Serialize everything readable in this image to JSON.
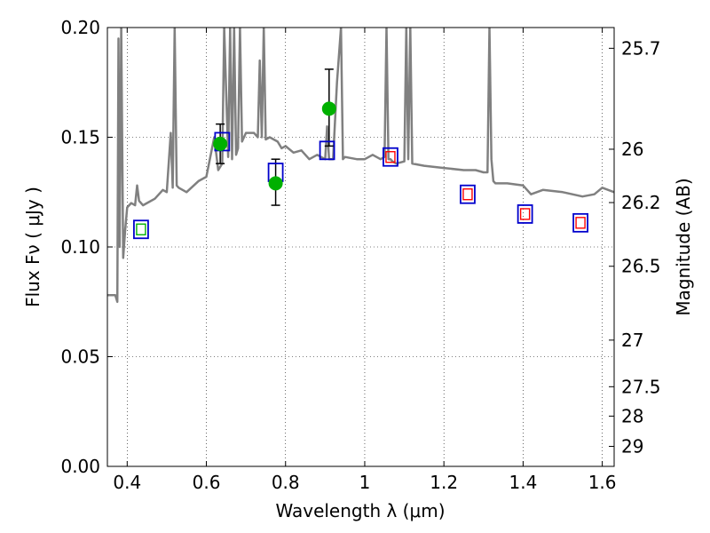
{
  "chart_data": {
    "type": "scatter",
    "xlabel": "Wavelength  λ (μm)",
    "ylabel": "Flux  Fν  ( μJy )",
    "ylabel_right": "Magnitude (AB)",
    "xlim": [
      0.35,
      1.63
    ],
    "ylim": [
      0.0,
      0.2
    ],
    "grid": true,
    "x_ticks": [
      0.4,
      0.6,
      0.8,
      1.0,
      1.2,
      1.4,
      1.6
    ],
    "x_tick_labels": [
      "0.4",
      "0.6",
      "0.8",
      "1",
      "1.2",
      "1.4",
      "1.6"
    ],
    "y_ticks": [
      0.0,
      0.05,
      0.1,
      0.15,
      0.2
    ],
    "y_tick_labels": [
      "0.00",
      "0.05",
      "0.10",
      "0.15",
      "0.20"
    ],
    "right_ticks": [
      {
        "mag": 25.7,
        "label": "25.7"
      },
      {
        "mag": 26.0,
        "label": "26"
      },
      {
        "mag": 26.2,
        "label": "26.2"
      },
      {
        "mag": 26.5,
        "label": "26.5"
      },
      {
        "mag": 27.0,
        "label": "27"
      },
      {
        "mag": 27.5,
        "label": "27.5"
      },
      {
        "mag": 28.0,
        "label": "28"
      },
      {
        "mag": 29.0,
        "label": "29"
      }
    ],
    "colors": {
      "spectrum": "#808080",
      "observed": "#00b000",
      "model_box": "#0000cc",
      "inner_box": "#ff0000",
      "errorbar": "#000000"
    },
    "spectrum": {
      "x": [
        0.35,
        0.37,
        0.375,
        0.378,
        0.381,
        0.385,
        0.39,
        0.395,
        0.4,
        0.41,
        0.42,
        0.425,
        0.43,
        0.44,
        0.45,
        0.47,
        0.49,
        0.5,
        0.51,
        0.515,
        0.52,
        0.525,
        0.53,
        0.55,
        0.58,
        0.6,
        0.62,
        0.63,
        0.64,
        0.645,
        0.655,
        0.66,
        0.665,
        0.67,
        0.675,
        0.68,
        0.685,
        0.69,
        0.695,
        0.7,
        0.72,
        0.73,
        0.735,
        0.74,
        0.745,
        0.75,
        0.76,
        0.78,
        0.79,
        0.8,
        0.82,
        0.84,
        0.86,
        0.88,
        0.9,
        0.905,
        0.91,
        0.92,
        0.93,
        0.94,
        0.945,
        0.95,
        0.98,
        1.0,
        1.02,
        1.04,
        1.05,
        1.055,
        1.06,
        1.065,
        1.07,
        1.08,
        1.1,
        1.105,
        1.11,
        1.115,
        1.12,
        1.15,
        1.2,
        1.25,
        1.28,
        1.3,
        1.31,
        1.315,
        1.32,
        1.325,
        1.33,
        1.36,
        1.4,
        1.42,
        1.45,
        1.5,
        1.55,
        1.58,
        1.6,
        1.63
      ],
      "y": [
        0.078,
        0.078,
        0.075,
        0.195,
        0.1,
        0.2,
        0.095,
        0.108,
        0.118,
        0.12,
        0.119,
        0.128,
        0.121,
        0.119,
        0.12,
        0.122,
        0.126,
        0.125,
        0.152,
        0.127,
        0.2,
        0.128,
        0.127,
        0.125,
        0.13,
        0.132,
        0.15,
        0.135,
        0.138,
        0.2,
        0.141,
        0.2,
        0.14,
        0.2,
        0.142,
        0.145,
        0.2,
        0.148,
        0.15,
        0.152,
        0.152,
        0.15,
        0.185,
        0.15,
        0.2,
        0.149,
        0.15,
        0.148,
        0.145,
        0.146,
        0.143,
        0.144,
        0.14,
        0.142,
        0.14,
        0.155,
        0.14,
        0.14,
        0.175,
        0.2,
        0.14,
        0.141,
        0.14,
        0.14,
        0.142,
        0.14,
        0.141,
        0.2,
        0.14,
        0.14,
        0.139,
        0.138,
        0.139,
        0.2,
        0.14,
        0.2,
        0.138,
        0.137,
        0.136,
        0.135,
        0.135,
        0.134,
        0.134,
        0.2,
        0.14,
        0.13,
        0.129,
        0.129,
        0.128,
        0.124,
        0.126,
        0.125,
        0.123,
        0.124,
        0.127,
        0.125
      ]
    },
    "observed_points": [
      {
        "x": 0.635,
        "y": 0.147,
        "err_low": 0.138,
        "err_high": 0.156
      },
      {
        "x": 0.775,
        "y": 0.129,
        "err_low": 0.119,
        "err_high": 0.14
      },
      {
        "x": 0.91,
        "y": 0.163,
        "err_low": 0.146,
        "err_high": 0.181
      }
    ],
    "model_boxes": [
      {
        "x": 0.435,
        "y": 0.108
      },
      {
        "x": 0.64,
        "y": 0.148
      },
      {
        "x": 0.775,
        "y": 0.134
      },
      {
        "x": 0.905,
        "y": 0.144
      },
      {
        "x": 1.065,
        "y": 0.141
      },
      {
        "x": 1.26,
        "y": 0.124
      },
      {
        "x": 1.405,
        "y": 0.115
      },
      {
        "x": 1.545,
        "y": 0.111
      }
    ],
    "inner_squares": [
      {
        "x": 0.435,
        "y": 0.108,
        "color": "#00b000"
      },
      {
        "x": 1.065,
        "y": 0.141,
        "color": "#ff0000"
      },
      {
        "x": 1.26,
        "y": 0.124,
        "color": "#ff0000"
      },
      {
        "x": 1.405,
        "y": 0.115,
        "color": "#ff0000"
      },
      {
        "x": 1.545,
        "y": 0.111,
        "color": "#ff0000"
      }
    ]
  }
}
